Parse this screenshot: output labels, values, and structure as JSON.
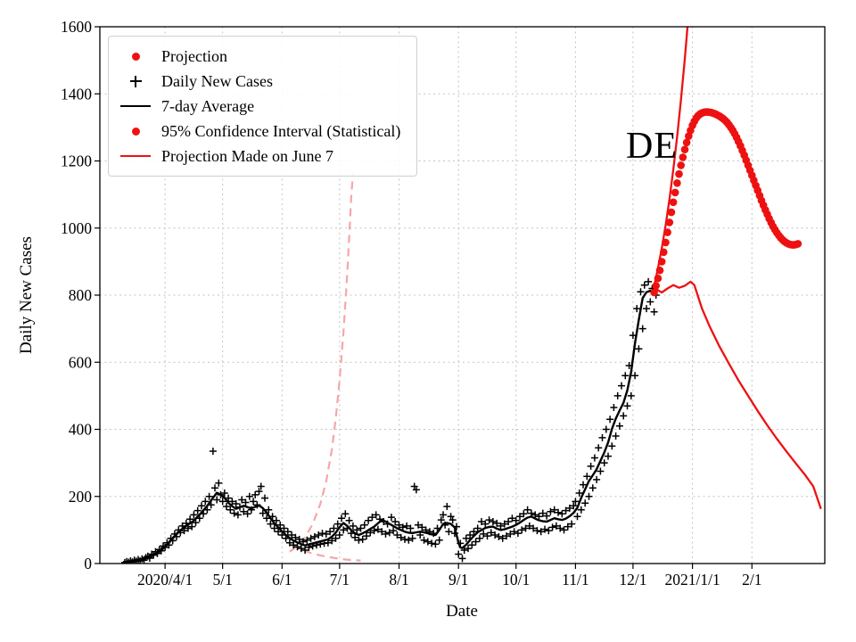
{
  "chart_data": {
    "type": "line+scatter",
    "title": "",
    "xlabel": "Date",
    "ylabel": "Daily New Cases",
    "x_unit": "days since 2020-03-01",
    "xlim_days": [
      -3,
      375
    ],
    "ylim": [
      0,
      1600
    ],
    "yticks": [
      0,
      200,
      400,
      600,
      800,
      1000,
      1200,
      1400,
      1600
    ],
    "xticks": [
      {
        "day": 31,
        "label": "2020/4/1"
      },
      {
        "day": 61,
        "label": "5/1"
      },
      {
        "day": 92,
        "label": "6/1"
      },
      {
        "day": 122,
        "label": "7/1"
      },
      {
        "day": 153,
        "label": "8/1"
      },
      {
        "day": 184,
        "label": "9/1"
      },
      {
        "day": 214,
        "label": "10/1"
      },
      {
        "day": 245,
        "label": "11/1"
      },
      {
        "day": 275,
        "label": "12/1"
      },
      {
        "day": 306,
        "label": "2021/1/1"
      },
      {
        "day": 337,
        "label": "2/1"
      }
    ],
    "grid": true,
    "legend_position": "upper left",
    "annotation": {
      "text": "DE",
      "day": 271.5,
      "value": 1210
    },
    "colors": {
      "red": "#ee1111",
      "pink": "#f7a6a6",
      "black": "#000000",
      "grid": "#c3c3c3"
    },
    "legend": {
      "items": [
        {
          "label": "Projection",
          "marker": "dot",
          "color": "#ee1111"
        },
        {
          "label": "Daily New Cases",
          "marker": "plus",
          "color": "#000000"
        },
        {
          "label": "7-day Average",
          "marker": "line",
          "color": "#000000"
        },
        {
          "label": "95% Confidence Interval (Statistical)",
          "marker": "dot",
          "color": "#ee1111"
        },
        {
          "label": "Projection Made on June 7",
          "marker": "line",
          "color": "#ee1111"
        }
      ]
    },
    "series": {
      "daily_cases": {
        "type": "scatter",
        "marker": "plus",
        "color_key": "black",
        "start_day": 10,
        "values": [
          3,
          6,
          4,
          8,
          5,
          10,
          7,
          12,
          8,
          14,
          10,
          18,
          22,
          16,
          28,
          25,
          35,
          30,
          42,
          38,
          52,
          48,
          62,
          55,
          75,
          68,
          88,
          80,
          100,
          92,
          112,
          98,
          120,
          105,
          132,
          110,
          145,
          122,
          158,
          135,
          172,
          148,
          185,
          160,
          200,
          175,
          335,
          225,
          190,
          240,
          205,
          185,
          210,
          170,
          195,
          160,
          185,
          150,
          178,
          145,
          168,
          190,
          155,
          182,
          148,
          200,
          160,
          185,
          205,
          175,
          215,
          230,
          150,
          195,
          135,
          160,
          118,
          140,
          105,
          128,
          95,
          115,
          85,
          105,
          75,
          95,
          62,
          85,
          55,
          78,
          50,
          72,
          45,
          65,
          40,
          70,
          48,
          75,
          52,
          80,
          55,
          85,
          58,
          90,
          60,
          88,
          62,
          95,
          68,
          105,
          75,
          118,
          85,
          135,
          100,
          148,
          105,
          128,
          90,
          112,
          78,
          100,
          70,
          105,
          72,
          115,
          82,
          128,
          92,
          138,
          98,
          145,
          102,
          132,
          95,
          125,
          88,
          118,
          92,
          138,
          98,
          125,
          85,
          115,
          78,
          108,
          72,
          112,
          70,
          105,
          75,
          230,
          220,
          115,
          85,
          108,
          70,
          100,
          65,
          95,
          60,
          90,
          58,
          105,
          70,
          130,
          145,
          115,
          170,
          95,
          140,
          130,
          90,
          110,
          28,
          60,
          15,
          40,
          75,
          45,
          85,
          55,
          95,
          65,
          105,
          75,
          125,
          88,
          118,
          82,
          130,
          92,
          125,
          85,
          120,
          80,
          112,
          75,
          118,
          82,
          125,
          88,
          135,
          95,
          128,
          90,
          140,
          100,
          148,
          105,
          160,
          112,
          150,
          105,
          145,
          98,
          140,
          95,
          150,
          102,
          142,
          98,
          155,
          108,
          160,
          112,
          152,
          105,
          148,
          100,
          158,
          110,
          165,
          118,
          172,
          185,
          140,
          210,
          160,
          235,
          180,
          260,
          200,
          290,
          225,
          315,
          250,
          345,
          275,
          375,
          300,
          400,
          320,
          430,
          350,
          465,
          380,
          500,
          410,
          530,
          440,
          560,
          470,
          590,
          500,
          680,
          560,
          760,
          640,
          810,
          700,
          830,
          760,
          840,
          780,
          820,
          750,
          800
        ]
      },
      "avg7": {
        "type": "line",
        "color_key": "black",
        "points": [
          [
            12,
            5
          ],
          [
            16,
            8
          ],
          [
            20,
            14
          ],
          [
            24,
            22
          ],
          [
            28,
            35
          ],
          [
            31,
            50
          ],
          [
            34,
            70
          ],
          [
            38,
            95
          ],
          [
            42,
            112
          ],
          [
            46,
            128
          ],
          [
            50,
            152
          ],
          [
            53,
            172
          ],
          [
            56,
            196
          ],
          [
            58,
            211
          ],
          [
            60,
            205
          ],
          [
            62,
            196
          ],
          [
            64,
            181
          ],
          [
            66,
            171
          ],
          [
            68,
            163
          ],
          [
            70,
            168
          ],
          [
            72,
            172
          ],
          [
            74,
            168
          ],
          [
            76,
            164
          ],
          [
            78,
            169
          ],
          [
            80,
            173
          ],
          [
            82,
            165
          ],
          [
            84,
            152
          ],
          [
            86,
            135
          ],
          [
            88,
            120
          ],
          [
            90,
            108
          ],
          [
            92,
            96
          ],
          [
            94,
            85
          ],
          [
            96,
            76
          ],
          [
            98,
            68
          ],
          [
            100,
            63
          ],
          [
            102,
            58
          ],
          [
            104,
            54
          ],
          [
            106,
            57
          ],
          [
            108,
            60
          ],
          [
            110,
            63
          ],
          [
            112,
            66
          ],
          [
            114,
            69
          ],
          [
            116,
            72
          ],
          [
            118,
            80
          ],
          [
            120,
            92
          ],
          [
            122,
            108
          ],
          [
            124,
            121
          ],
          [
            126,
            112
          ],
          [
            128,
            100
          ],
          [
            130,
            90
          ],
          [
            132,
            85
          ],
          [
            134,
            90
          ],
          [
            136,
            96
          ],
          [
            138,
            103
          ],
          [
            140,
            110
          ],
          [
            142,
            120
          ],
          [
            144,
            130
          ],
          [
            146,
            125
          ],
          [
            148,
            118
          ],
          [
            150,
            112
          ],
          [
            152,
            105
          ],
          [
            154,
            100
          ],
          [
            156,
            95
          ],
          [
            158,
            92
          ],
          [
            160,
            91
          ],
          [
            162,
            93
          ],
          [
            164,
            95
          ],
          [
            166,
            93
          ],
          [
            168,
            90
          ],
          [
            170,
            87
          ],
          [
            172,
            85
          ],
          [
            174,
            100
          ],
          [
            176,
            118
          ],
          [
            178,
            121
          ],
          [
            180,
            118
          ],
          [
            182,
            108
          ],
          [
            184,
            62
          ],
          [
            185,
            48
          ],
          [
            186,
            46
          ],
          [
            188,
            56
          ],
          [
            190,
            70
          ],
          [
            192,
            82
          ],
          [
            194,
            93
          ],
          [
            196,
            100
          ],
          [
            198,
            106
          ],
          [
            200,
            109
          ],
          [
            202,
            110
          ],
          [
            204,
            104
          ],
          [
            206,
            100
          ],
          [
            208,
            102
          ],
          [
            210,
            106
          ],
          [
            212,
            110
          ],
          [
            214,
            115
          ],
          [
            216,
            122
          ],
          [
            218,
            130
          ],
          [
            220,
            137
          ],
          [
            222,
            140
          ],
          [
            224,
            134
          ],
          [
            226,
            129
          ],
          [
            228,
            126
          ],
          [
            230,
            125
          ],
          [
            232,
            130
          ],
          [
            234,
            135
          ],
          [
            236,
            132
          ],
          [
            238,
            130
          ],
          [
            240,
            134
          ],
          [
            242,
            141
          ],
          [
            244,
            151
          ],
          [
            246,
            166
          ],
          [
            248,
            196
          ],
          [
            250,
            221
          ],
          [
            252,
            246
          ],
          [
            254,
            263
          ],
          [
            256,
            281
          ],
          [
            258,
            306
          ],
          [
            260,
            331
          ],
          [
            262,
            361
          ],
          [
            264,
            401
          ],
          [
            266,
            432
          ],
          [
            268,
            456
          ],
          [
            270,
            479
          ],
          [
            272,
            516
          ],
          [
            274,
            571
          ],
          [
            276,
            656
          ],
          [
            278,
            726
          ],
          [
            280,
            791
          ],
          [
            282,
            809
          ],
          [
            284,
            813
          ],
          [
            285,
            806
          ],
          [
            286,
            816
          ],
          [
            287,
            822
          ]
        ]
      },
      "projection": {
        "type": "scatter",
        "marker": "dot",
        "color_key": "red",
        "start_day": 286,
        "values": [
          808,
          828,
          850,
          874,
          900,
          928,
          957,
          987,
          1017,
          1047,
          1077,
          1106,
          1134,
          1161,
          1187,
          1211,
          1234,
          1255,
          1274,
          1291,
          1306,
          1318,
          1328,
          1335,
          1340,
          1343,
          1345,
          1346,
          1346,
          1345,
          1344,
          1342,
          1340,
          1337,
          1334,
          1330,
          1326,
          1321,
          1315,
          1308,
          1300,
          1291,
          1281,
          1270,
          1258,
          1245,
          1231,
          1217,
          1202,
          1187,
          1172,
          1157,
          1142,
          1127,
          1112,
          1097,
          1082,
          1068,
          1054,
          1041,
          1028,
          1016,
          1005,
          995,
          986,
          978,
          971,
          965,
          960,
          956,
          953,
          951,
          950,
          950,
          951,
          953
        ]
      },
      "ci_upper": {
        "type": "line",
        "color_key": "red",
        "points": [
          [
            286,
            826
          ],
          [
            288,
            880
          ],
          [
            290,
            940
          ],
          [
            292,
            1008
          ],
          [
            294,
            1086
          ],
          [
            296,
            1174
          ],
          [
            298,
            1272
          ],
          [
            300,
            1382
          ],
          [
            302,
            1504
          ],
          [
            304,
            1640
          ],
          [
            305,
            1720
          ]
        ]
      },
      "ci_lower": {
        "type": "line",
        "color_key": "red",
        "points": [
          [
            287,
            818
          ],
          [
            290,
            808
          ],
          [
            293,
            820
          ],
          [
            296,
            830
          ],
          [
            299,
            822
          ],
          [
            302,
            828
          ],
          [
            305,
            840
          ],
          [
            307,
            830
          ],
          [
            311,
            760
          ],
          [
            315,
            706
          ],
          [
            320,
            648
          ],
          [
            325,
            596
          ],
          [
            330,
            546
          ],
          [
            335,
            500
          ],
          [
            340,
            455
          ],
          [
            345,
            412
          ],
          [
            350,
            372
          ],
          [
            355,
            334
          ],
          [
            360,
            298
          ],
          [
            365,
            262
          ],
          [
            369,
            230
          ],
          [
            373,
            163
          ]
        ]
      },
      "june7_upper": {
        "type": "line",
        "style": "dashed",
        "color_key": "pink",
        "points": [
          [
            96,
            35
          ],
          [
            100,
            52
          ],
          [
            104,
            78
          ],
          [
            108,
            118
          ],
          [
            112,
            178
          ],
          [
            115,
            245
          ],
          [
            118,
            340
          ],
          [
            120,
            432
          ],
          [
            122,
            545
          ],
          [
            124,
            690
          ],
          [
            125,
            775
          ],
          [
            126,
            868
          ],
          [
            127,
            972
          ],
          [
            128,
            1088
          ],
          [
            129,
            1165
          ]
        ]
      },
      "june7_lower": {
        "type": "line",
        "style": "dashed",
        "color_key": "pink",
        "points": [
          [
            97,
            55
          ],
          [
            101,
            44
          ],
          [
            105,
            35
          ],
          [
            109,
            28
          ],
          [
            113,
            23
          ],
          [
            117,
            19
          ],
          [
            121,
            15
          ],
          [
            125,
            12
          ],
          [
            129,
            10
          ],
          [
            133,
            9
          ]
        ]
      }
    }
  }
}
